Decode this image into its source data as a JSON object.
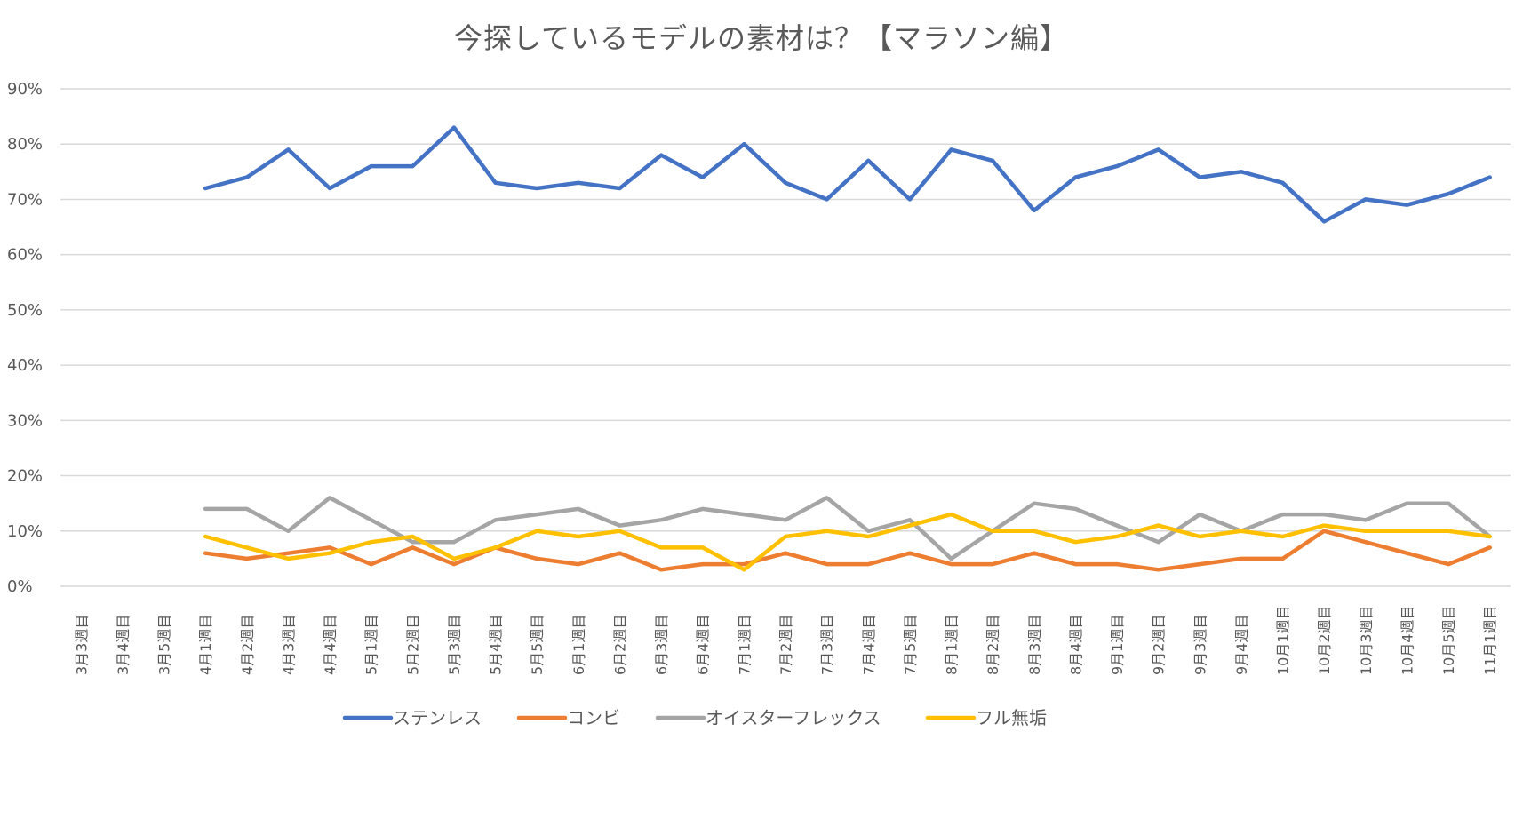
{
  "chart_data": {
    "type": "line",
    "title": "今探しているモデルの素材は？【マラソン編】",
    "xlabel": "",
    "ylabel": "",
    "ylim": [
      0,
      90
    ],
    "yticks": [
      "0%",
      "10%",
      "20%",
      "30%",
      "40%",
      "50%",
      "60%",
      "70%",
      "80%",
      "90%"
    ],
    "grid": true,
    "legend_position": "bottom",
    "categories": [
      "3月3週目",
      "3月4週目",
      "3月5週目",
      "4月1週目",
      "4月2週目",
      "4月3週目",
      "4月4週目",
      "5月1週目",
      "5月2週目",
      "5月3週目",
      "5月4週目",
      "5月5週目",
      "6月1週目",
      "6月2週目",
      "6月3週目",
      "6月4週目",
      "7月1週目",
      "7月2週目",
      "7月3週目",
      "7月4週目",
      "7月5週目",
      "8月1週目",
      "8月2週目",
      "8月3週目",
      "8月4週目",
      "9月1週目",
      "9月2週目",
      "9月3週目",
      "9月4週目",
      "10月1週目",
      "10月2週目",
      "10月3週目",
      "10月4週目",
      "10月5週目",
      "11月1週目"
    ],
    "series": [
      {
        "name": "ステンレス",
        "color": "#4472C4",
        "values": [
          null,
          null,
          null,
          72,
          74,
          79,
          72,
          76,
          76,
          83,
          73,
          72,
          73,
          72,
          78,
          74,
          80,
          73,
          70,
          77,
          70,
          79,
          77,
          68,
          74,
          76,
          79,
          74,
          75,
          73,
          66,
          70,
          69,
          71,
          74
        ]
      },
      {
        "name": "コンビ",
        "color": "#ED7D31",
        "values": [
          null,
          null,
          null,
          6,
          5,
          6,
          7,
          4,
          7,
          4,
          7,
          5,
          4,
          6,
          3,
          4,
          4,
          6,
          4,
          4,
          6,
          4,
          4,
          6,
          4,
          4,
          3,
          4,
          5,
          5,
          10,
          8,
          6,
          4,
          7
        ]
      },
      {
        "name": "オイスターフレックス",
        "color": "#A5A5A5",
        "values": [
          null,
          null,
          null,
          14,
          14,
          10,
          16,
          12,
          8,
          8,
          12,
          13,
          14,
          11,
          12,
          14,
          13,
          12,
          16,
          10,
          12,
          5,
          10,
          15,
          14,
          11,
          8,
          13,
          10,
          13,
          13,
          12,
          15,
          15,
          9
        ]
      },
      {
        "name": "フル無垢",
        "color": "#FFC000",
        "values": [
          null,
          null,
          null,
          9,
          7,
          5,
          6,
          8,
          9,
          5,
          7,
          10,
          9,
          10,
          7,
          7,
          3,
          9,
          10,
          9,
          11,
          13,
          10,
          10,
          8,
          9,
          11,
          9,
          10,
          9,
          11,
          10,
          10,
          10,
          9
        ]
      }
    ]
  }
}
